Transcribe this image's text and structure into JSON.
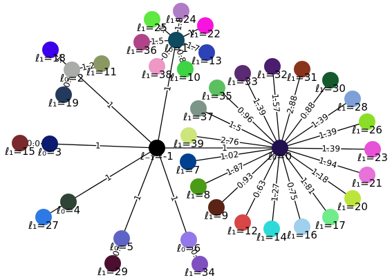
{
  "nodes": [
    {
      "id": "n_1",
      "label": "ℓ₋₁=-1",
      "color": "#000000"
    },
    {
      "id": "n0",
      "label": "ℓ₀=0",
      "color": "#22104f"
    },
    {
      "id": "n2",
      "label": "ℓ₀=2",
      "color": "#a9aca9"
    },
    {
      "id": "n3",
      "label": "ℓ₀=3",
      "color": "#0c1a70"
    },
    {
      "id": "n4",
      "label": "ℓ₀=4",
      "color": "#2f4337"
    },
    {
      "id": "n5",
      "label": "ℓ₀=5",
      "color": "#5e64c6"
    },
    {
      "id": "n6",
      "label": "ℓ₀=6",
      "color": "#9378e8"
    },
    {
      "id": "n7",
      "label": "ℓ₁=7",
      "color": "#004090"
    },
    {
      "id": "n8",
      "label": "ℓ₁=8",
      "color": "#4a9b16"
    },
    {
      "id": "n9",
      "label": "ℓ₁=9",
      "color": "#5a2316"
    },
    {
      "id": "n10",
      "label": "ℓ₁=10",
      "color": "#3ed444"
    },
    {
      "id": "n11",
      "label": "ℓ₁=11",
      "color": "#8a9962"
    },
    {
      "id": "n12",
      "label": "ℓ₁=12",
      "color": "#d84648"
    },
    {
      "id": "n13",
      "label": "ℓ₁=13",
      "color": "#2c42b6"
    },
    {
      "id": "n14",
      "label": "ℓ₁=14",
      "color": "#2edad8"
    },
    {
      "id": "n15",
      "label": "ℓ₁=15",
      "color": "#7a2a2c"
    },
    {
      "id": "n16",
      "label": "ℓ₁=16",
      "color": "#9fd0ee"
    },
    {
      "id": "n17",
      "label": "ℓ₁=17",
      "color": "#70ec8a"
    },
    {
      "id": "n18",
      "label": "ℓ₁=18",
      "color": "#3c00ea"
    },
    {
      "id": "n19",
      "label": "ℓ₁=19",
      "color": "#233a5c"
    },
    {
      "id": "n20",
      "label": "ℓ₁=20",
      "color": "#bde43a"
    },
    {
      "id": "n21",
      "label": "ℓ₁=21",
      "color": "#e772d8"
    },
    {
      "id": "n22",
      "label": "ℓ₁=22",
      "color": "#f614de"
    },
    {
      "id": "n23",
      "label": "ℓ₁=23",
      "color": "#e653d6"
    },
    {
      "id": "n24",
      "label": "ℓ₁=24",
      "color": "#b17cc6"
    },
    {
      "id": "n25",
      "label": "ℓ₁=25",
      "color": "#5ee840"
    },
    {
      "id": "n26",
      "label": "ℓ₁=26",
      "color": "#8ade28"
    },
    {
      "id": "n27",
      "label": "ℓ₁=27",
      "color": "#2e7ae4"
    },
    {
      "id": "n28",
      "label": "ℓ₁=28",
      "color": "#7ea0d6"
    },
    {
      "id": "n29",
      "label": "ℓ₁=29",
      "color": "#4c0f30"
    },
    {
      "id": "n30",
      "label": "ℓ₁=30",
      "color": "#145a2c"
    },
    {
      "id": "n31",
      "label": "ℓ₁=31",
      "color": "#8b341c"
    },
    {
      "id": "n32",
      "label": "ℓ₁=32",
      "color": "#4a1d6e"
    },
    {
      "id": "n33",
      "label": "ℓ₁=33",
      "color": "#5a2a72"
    },
    {
      "id": "n34",
      "label": "ℓ₁=34",
      "color": "#7f50c0"
    },
    {
      "id": "n35",
      "label": "ℓ₁=35",
      "color": "#5cc060"
    },
    {
      "id": "n36",
      "label": "ℓ₁=36",
      "color": "#b04488"
    },
    {
      "id": "n37",
      "label": "ℓ₁=37",
      "color": "#7d9488"
    },
    {
      "id": "n38",
      "label": "ℓ₁=38",
      "color": "#ee98c6"
    },
    {
      "id": "n39",
      "label": "ℓ₁=39",
      "color": "#cce67c"
    },
    {
      "id": "n1",
      "label": "ℓ₀=1",
      "color": "#0e4a60"
    }
  ],
  "edges": [
    {
      "from": "n_1",
      "to": "n0",
      "label": "1"
    },
    {
      "from": "n_1",
      "to": "n1",
      "label": "1"
    },
    {
      "from": "n_1",
      "to": "n2",
      "label": "1"
    },
    {
      "from": "n_1",
      "to": "n3",
      "label": "1"
    },
    {
      "from": "n_1",
      "to": "n4",
      "label": "1"
    },
    {
      "from": "n_1",
      "to": "n5",
      "label": "1"
    },
    {
      "from": "n_1",
      "to": "n6",
      "label": "1"
    },
    {
      "from": "n0",
      "to": "n7",
      "label": "1.02"
    },
    {
      "from": "n0",
      "to": "n8",
      "label": "1.87"
    },
    {
      "from": "n0",
      "to": "n9",
      "label": "0.93"
    },
    {
      "from": "n0",
      "to": "n12",
      "label": "0.63"
    },
    {
      "from": "n0",
      "to": "n14",
      "label": "1.27"
    },
    {
      "from": "n0",
      "to": "n16",
      "label": "0.75"
    },
    {
      "from": "n0",
      "to": "n17",
      "label": "1.81"
    },
    {
      "from": "n0",
      "to": "n20",
      "label": "1.18"
    },
    {
      "from": "n0",
      "to": "n21",
      "label": "1.94"
    },
    {
      "from": "n0",
      "to": "n23",
      "label": "1.39"
    },
    {
      "from": "n0",
      "to": "n26",
      "label": "1.39"
    },
    {
      "from": "n0",
      "to": "n28",
      "label": "1.39"
    },
    {
      "from": "n0",
      "to": "n30",
      "label": "0.88"
    },
    {
      "from": "n0",
      "to": "n31",
      "label": "2.88"
    },
    {
      "from": "n0",
      "to": "n32",
      "label": "1.57"
    },
    {
      "from": "n0",
      "to": "n33",
      "label": "1.39"
    },
    {
      "from": "n0",
      "to": "n35",
      "label": "0.96"
    },
    {
      "from": "n0",
      "to": "n37",
      "label": "1.5"
    },
    {
      "from": "n0",
      "to": "n39",
      "label": "2.76"
    },
    {
      "from": "n2",
      "to": "n11",
      "label": "1.2"
    },
    {
      "from": "n2",
      "to": "n18",
      "label": "1."
    },
    {
      "from": "n2",
      "to": "n19",
      "label": "0."
    },
    {
      "from": "n3",
      "to": "n15",
      "label": "0.0"
    },
    {
      "from": "n4",
      "to": "n27",
      "label": ""
    },
    {
      "from": "n5",
      "to": "n29",
      "label": "0."
    },
    {
      "from": "n6",
      "to": "n34",
      "label": "0."
    },
    {
      "from": "n1",
      "to": "n10",
      "label": "0.8"
    },
    {
      "from": "n1",
      "to": "n13",
      "label": "1.7"
    },
    {
      "from": "n1",
      "to": "n22",
      "label": "1."
    },
    {
      "from": "n1",
      "to": "n24",
      "label": "1.8"
    },
    {
      "from": "n1",
      "to": "n25",
      "label": "2."
    },
    {
      "from": "n1",
      "to": "n36",
      "label": "1.5"
    },
    {
      "from": "n1",
      "to": "n38",
      "label": "0."
    }
  ]
}
